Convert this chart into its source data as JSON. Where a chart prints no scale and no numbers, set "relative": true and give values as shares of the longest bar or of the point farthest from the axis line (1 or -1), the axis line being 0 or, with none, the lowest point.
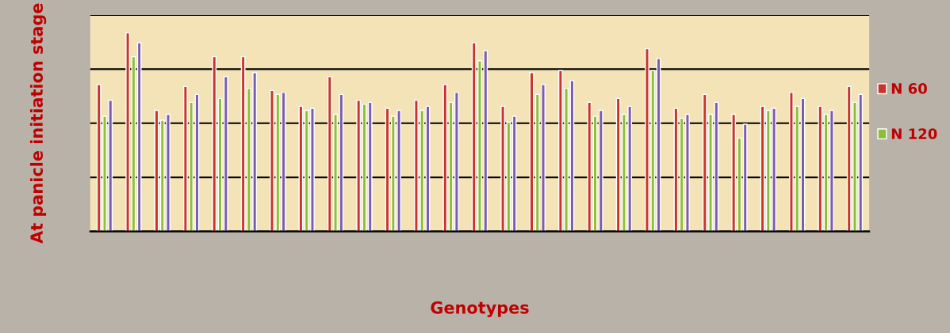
{
  "chart_data": {
    "type": "bar",
    "relative": true,
    "xlabel": "Genotypes",
    "ylabel": "At panicle initiation stage",
    "categories": [
      null,
      null,
      null,
      null,
      null,
      null,
      null,
      null,
      null,
      null,
      null,
      null,
      null,
      null,
      null,
      null,
      null,
      null,
      null,
      null,
      null,
      null,
      null,
      null,
      null,
      null,
      null
    ],
    "series": [
      {
        "name": "N 60",
        "color": "#c8352e",
        "values": [
          0.74,
          1.0,
          0.61,
          0.73,
          0.88,
          0.88,
          0.71,
          0.63,
          0.78,
          0.66,
          0.62,
          0.66,
          0.74,
          0.95,
          0.63,
          0.8,
          0.81,
          0.65,
          0.67,
          0.92,
          0.62,
          0.69,
          0.59,
          0.63,
          0.7,
          0.63,
          0.73
        ]
      },
      {
        "name": "N 120",
        "color": "#8cbf3a",
        "values": [
          0.58,
          0.88,
          0.56,
          0.65,
          0.67,
          0.72,
          0.69,
          0.61,
          0.59,
          0.64,
          0.58,
          0.61,
          0.65,
          0.86,
          0.55,
          0.69,
          0.72,
          0.58,
          0.59,
          0.81,
          0.57,
          0.59,
          0.47,
          0.61,
          0.63,
          0.59,
          0.65
        ]
      },
      {
        "color": "#7a5cb0",
        "values": [
          0.66,
          0.95,
          0.59,
          0.69,
          0.78,
          0.8,
          0.7,
          0.62,
          0.69,
          0.65,
          0.61,
          0.63,
          0.7,
          0.91,
          0.58,
          0.74,
          0.76,
          0.61,
          0.63,
          0.87,
          0.59,
          0.65,
          0.54,
          0.62,
          0.67,
          0.61,
          0.69
        ]
      }
    ],
    "grid": "y",
    "legend": "right"
  }
}
